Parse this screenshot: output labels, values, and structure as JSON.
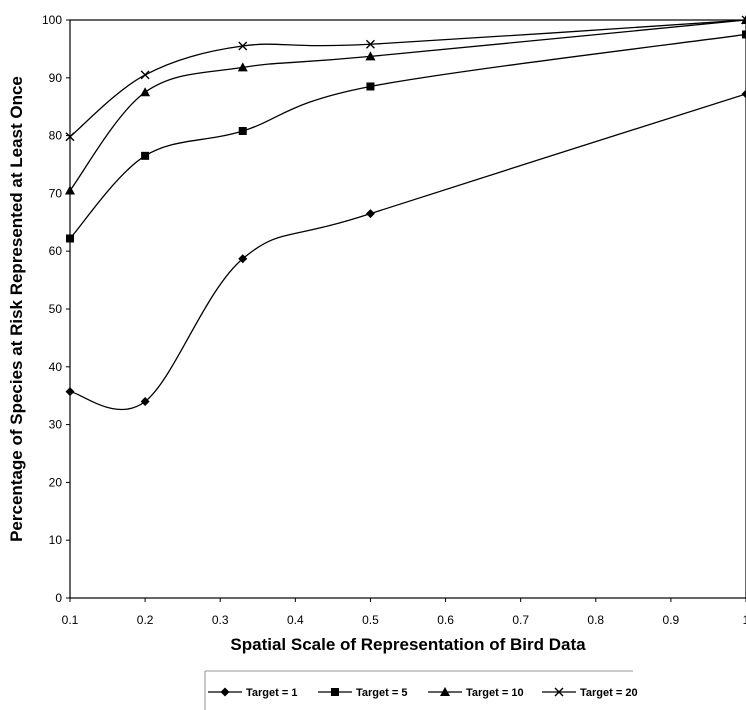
{
  "chart_data": {
    "type": "line",
    "title": "",
    "xlabel": "Spatial Scale of Representation of Bird Data",
    "ylabel": "Percentage of Species at Risk Represented at Least Once",
    "xlim": [
      0.1,
      1
    ],
    "ylim": [
      0,
      100
    ],
    "x_ticks": [
      "0.1",
      "0.2",
      "0.3",
      "0.4",
      "0.5",
      "0.6",
      "0.7",
      "0.8",
      "0.9",
      "1"
    ],
    "y_ticks": [
      "0",
      "10",
      "20",
      "30",
      "40",
      "50",
      "60",
      "70",
      "80",
      "90",
      "100"
    ],
    "grid": false,
    "legend_position": "bottom",
    "x": [
      0.1,
      0.2,
      0.33,
      0.5,
      1.0
    ],
    "series": [
      {
        "name": "Target = 1",
        "marker": "diamond",
        "values": [
          35.7,
          34.0,
          58.7,
          66.5,
          87.2
        ]
      },
      {
        "name": "Target = 5",
        "marker": "square",
        "values": [
          62.2,
          76.5,
          80.8,
          88.5,
          97.5
        ]
      },
      {
        "name": "Target = 10",
        "marker": "triangle",
        "values": [
          70.5,
          87.5,
          91.8,
          93.7,
          100.0
        ]
      },
      {
        "name": "Target = 20",
        "marker": "x",
        "values": [
          79.8,
          90.5,
          95.5,
          95.8,
          100.0
        ]
      }
    ]
  }
}
